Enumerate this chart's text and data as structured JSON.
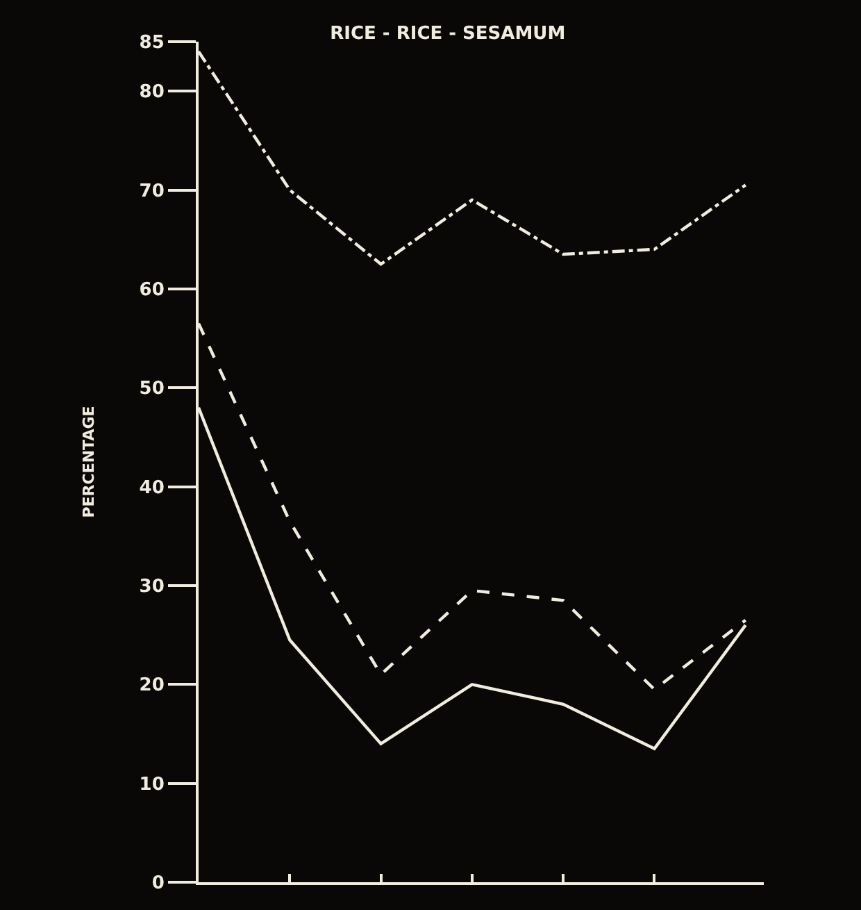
{
  "chart_data": {
    "type": "line",
    "title": "RICE - RICE - SESAMUM",
    "ylabel": "PERCENTAGE",
    "categories": [
      null,
      null,
      null,
      null,
      null,
      null,
      null
    ],
    "series": [
      {
        "color": "#f0ece0",
        "line_style": "dashdot",
        "values": [
          84,
          70,
          62.5,
          69,
          63.5,
          64,
          70.5
        ]
      },
      {
        "color": "#f0ece0",
        "line_style": "dashed",
        "values": [
          56.5,
          36.5,
          21,
          29.5,
          28.5,
          19.5,
          26.5
        ]
      },
      {
        "color": "#f0ece0",
        "line_style": "solid",
        "values": [
          48,
          24.5,
          14,
          20,
          18,
          13.5,
          26
        ]
      }
    ],
    "ylim": [
      0,
      85
    ],
    "yticks": [
      0,
      10,
      20,
      30,
      40,
      50,
      60,
      70,
      80,
      85
    ]
  }
}
